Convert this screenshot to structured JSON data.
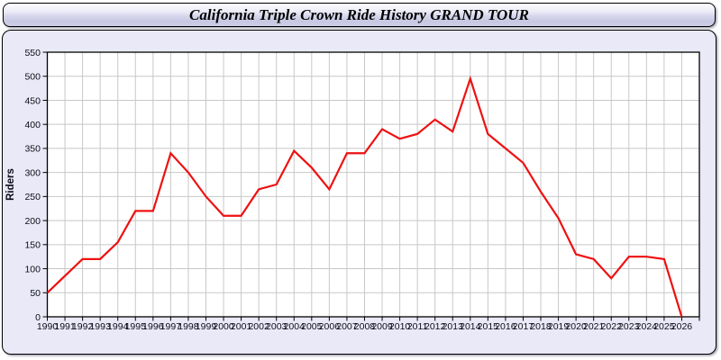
{
  "window": {
    "title": "California Triple Crown Ride History GRAND TOUR"
  },
  "chart_data": {
    "type": "line",
    "title": "California Triple Crown Ride History GRAND TOUR",
    "xlabel": "",
    "ylabel": "Riders",
    "ylim": [
      0,
      550
    ],
    "ytick_step": 50,
    "grid": true,
    "legend_position": "none",
    "x": [
      1990,
      1991,
      1992,
      1993,
      1994,
      1995,
      1996,
      1997,
      1998,
      1999,
      2000,
      2001,
      2002,
      2003,
      2004,
      2005,
      2006,
      2007,
      2008,
      2009,
      2010,
      2011,
      2012,
      2013,
      2014,
      2015,
      2016,
      2017,
      2018,
      2019,
      2020,
      2021,
      2022,
      2023,
      2024,
      2025,
      2026
    ],
    "series": [
      {
        "name": "Riders",
        "values": [
          50,
          85,
          120,
          120,
          155,
          220,
          220,
          340,
          300,
          250,
          210,
          210,
          265,
          275,
          345,
          310,
          265,
          340,
          340,
          390,
          370,
          380,
          410,
          385,
          495,
          380,
          350,
          320,
          260,
          205,
          130,
          120,
          80,
          125,
          125,
          120,
          0
        ]
      }
    ]
  },
  "colors": {
    "line": "#ee1111",
    "panel_bg": "#e9e9f7",
    "plot_bg": "#ffffff",
    "gridline": "#c8c8c8",
    "axis": "#000000",
    "text": "#0d0d1a"
  }
}
